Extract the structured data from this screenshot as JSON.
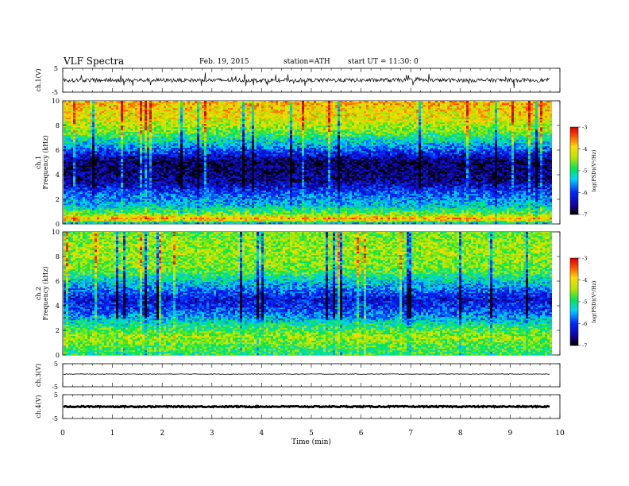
{
  "header": {
    "title": "VLF  Spectra",
    "date": "Feb. 19, 2015",
    "station": "station=ATH",
    "start": "start  UT  =    11:30: 0"
  },
  "chart_data": [
    {
      "type": "line",
      "panel": "ch1-waveform",
      "ylabel": "ch.1(V)",
      "ylim": [
        -5,
        5
      ],
      "yticks": [
        5,
        -5
      ],
      "xlim": [
        0,
        10
      ],
      "signal_end": 9.8,
      "description_hint": "broadband noisy waveform centered near 0 V, amplitude about ±1.5 V",
      "color": "#000000"
    },
    {
      "type": "heatmap",
      "panel": "ch1-spectrogram",
      "ylabel": "ch.1\nFrequency  (kHz)",
      "ylim": [
        0,
        10
      ],
      "yticks": [
        0,
        2,
        4,
        6,
        8,
        10
      ],
      "xlim": [
        0,
        10
      ],
      "signal_end": 9.8,
      "colorbar": {
        "label": "log(PSD)(V²/Hz)",
        "range": [
          -7,
          -3
        ],
        "ticks": [
          -3,
          -4,
          -5,
          -6,
          -7
        ]
      },
      "level_profile": [
        {
          "f": 0.0,
          "v": -5.8
        },
        {
          "f": 0.4,
          "v": -3.6
        },
        {
          "f": 0.8,
          "v": -4.6
        },
        {
          "f": 1.5,
          "v": -5.4
        },
        {
          "f": 2.5,
          "v": -5.9
        },
        {
          "f": 3.5,
          "v": -6.6
        },
        {
          "f": 5.0,
          "v": -6.8
        },
        {
          "f": 6.5,
          "v": -5.4
        },
        {
          "f": 7.5,
          "v": -4.6
        },
        {
          "f": 8.5,
          "v": -4.1
        },
        {
          "f": 10.0,
          "v": -3.8
        }
      ]
    },
    {
      "type": "heatmap",
      "panel": "ch2-spectrogram",
      "ylabel": "ch.2\nFrequency  (kHz)",
      "ylim": [
        0,
        10
      ],
      "yticks": [
        0,
        2,
        4,
        6,
        8,
        10
      ],
      "xlim": [
        0,
        10
      ],
      "signal_end": 9.8,
      "colorbar": {
        "label": "log(PSD)(V²/Hz)",
        "range": [
          -7,
          -3
        ],
        "ticks": [
          -3,
          -4,
          -5,
          -6,
          -7
        ]
      },
      "level_profile": [
        {
          "f": 0.0,
          "v": -5.0
        },
        {
          "f": 0.5,
          "v": -4.8
        },
        {
          "f": 1.5,
          "v": -4.4
        },
        {
          "f": 2.5,
          "v": -5.1
        },
        {
          "f": 3.5,
          "v": -5.9
        },
        {
          "f": 4.5,
          "v": -6.3
        },
        {
          "f": 5.5,
          "v": -5.6
        },
        {
          "f": 7.0,
          "v": -4.6
        },
        {
          "f": 8.5,
          "v": -4.4
        },
        {
          "f": 10.0,
          "v": -4.6
        }
      ]
    },
    {
      "type": "line",
      "panel": "ch3-waveform",
      "ylabel": "ch.3(V)",
      "ylim": [
        -5,
        5
      ],
      "yticks": [
        5,
        -5
      ],
      "xlim": [
        0,
        10
      ],
      "signal_end": 9.8,
      "level": 0.5,
      "color": "#000000"
    },
    {
      "type": "line",
      "panel": "ch4-waveform",
      "ylabel": "ch.4(V)",
      "ylim": [
        -5,
        5
      ],
      "yticks": [
        5,
        -5
      ],
      "xlim": [
        0,
        10
      ],
      "signal_end": 9.8,
      "level": 0.0,
      "color": "#000000"
    }
  ],
  "xaxis": {
    "label": "Time  (min)",
    "ticks": [
      0,
      1,
      2,
      3,
      4,
      5,
      6,
      7,
      8,
      9,
      10
    ]
  }
}
